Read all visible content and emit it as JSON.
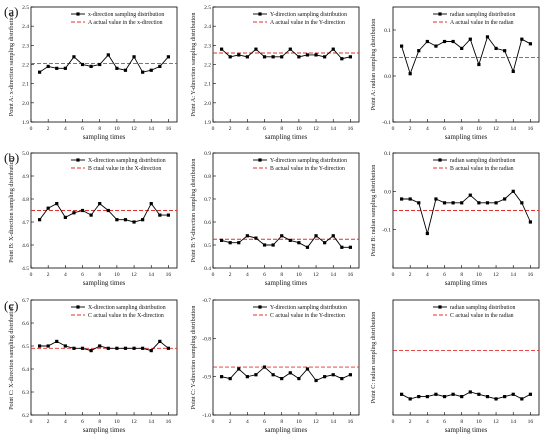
{
  "row_labels": [
    "(a)",
    "(b)",
    "(c)"
  ],
  "chart_data": [
    {
      "type": "line",
      "row": 0,
      "col": 0,
      "xlabel": "sampling times",
      "ylabel": "Point A: x-direction sampling distribution",
      "xlim": [
        0,
        17
      ],
      "xticks": [
        0,
        2,
        4,
        6,
        8,
        10,
        12,
        14,
        16
      ],
      "ylim": [
        1.9,
        2.5
      ],
      "yticks": [
        1.9,
        2.0,
        2.1,
        2.2,
        2.3,
        2.4,
        2.5
      ],
      "ytick_labels": [
        "1.9",
        "2.0",
        "2.1",
        "2.2",
        "2.3",
        "2.4",
        "2.5"
      ],
      "legend_loc": "top-right",
      "series": [
        {
          "name": "x-direction sampling distribution",
          "style": "line-square",
          "color": "#000000",
          "x": [
            1,
            2,
            3,
            4,
            5,
            6,
            7,
            8,
            9,
            10,
            11,
            12,
            13,
            14,
            15,
            16
          ],
          "values": [
            2.16,
            2.19,
            2.18,
            2.18,
            2.24,
            2.2,
            2.19,
            2.2,
            2.25,
            2.18,
            2.17,
            2.24,
            2.16,
            2.17,
            2.19,
            2.24
          ]
        }
      ],
      "reference": {
        "name": "A actual value in the x-direction",
        "value": 2.205,
        "color": "#e03030"
      }
    },
    {
      "type": "line",
      "row": 0,
      "col": 1,
      "xlabel": "sampling times",
      "ylabel": "Point A: Y-direction sampling distribution",
      "xlim": [
        0,
        17
      ],
      "xticks": [
        0,
        2,
        4,
        6,
        8,
        10,
        12,
        14,
        16
      ],
      "ylim": [
        1.9,
        2.5
      ],
      "yticks": [
        1.9,
        2.0,
        2.1,
        2.2,
        2.3,
        2.4,
        2.5
      ],
      "ytick_labels": [
        "1.9",
        "2.0",
        "2.1",
        "2.2",
        "2.3",
        "2.4",
        "2.5"
      ],
      "legend_loc": "top-right",
      "series": [
        {
          "name": "Y-direction sampling distribution",
          "style": "line-square",
          "color": "#000000",
          "x": [
            1,
            2,
            3,
            4,
            5,
            6,
            7,
            8,
            9,
            10,
            11,
            12,
            13,
            14,
            15,
            16
          ],
          "values": [
            2.28,
            2.24,
            2.25,
            2.24,
            2.28,
            2.24,
            2.24,
            2.24,
            2.28,
            2.24,
            2.25,
            2.25,
            2.24,
            2.28,
            2.23,
            2.24
          ]
        }
      ],
      "reference": {
        "name": "A actual value in the Y-direction",
        "value": 2.26,
        "color": "#e03030"
      }
    },
    {
      "type": "line",
      "row": 0,
      "col": 2,
      "xlabel": "sampling times",
      "ylabel": "Point A: radian sampling distribution",
      "xlim": [
        0,
        17
      ],
      "xticks": [
        0,
        2,
        4,
        6,
        8,
        10,
        12,
        14,
        16
      ],
      "ylim": [
        -0.1,
        0.15
      ],
      "yticks": [
        -0.1,
        0.0,
        0.1
      ],
      "ytick_labels": [
        "-0.1",
        "0.0",
        "0.1"
      ],
      "legend_loc": "top-right",
      "series": [
        {
          "name": "radian sampling distribution",
          "style": "line-square",
          "color": "#000000",
          "x": [
            1,
            2,
            3,
            4,
            5,
            6,
            7,
            8,
            9,
            10,
            11,
            12,
            13,
            14,
            15,
            16
          ],
          "values": [
            0.065,
            0.005,
            0.055,
            0.075,
            0.065,
            0.075,
            0.075,
            0.06,
            0.08,
            0.025,
            0.085,
            0.06,
            0.055,
            0.01,
            0.08,
            0.07
          ]
        }
      ],
      "reference": {
        "name": "A actual value in the radian",
        "value": 0.04,
        "color": "#e03030"
      }
    },
    {
      "type": "line",
      "row": 1,
      "col": 0,
      "xlabel": "sampling times",
      "ylabel": "Point B: X-direction sampling distribution",
      "xlim": [
        0,
        17
      ],
      "xticks": [
        0,
        2,
        4,
        6,
        8,
        10,
        12,
        14,
        16
      ],
      "ylim": [
        4.5,
        5.0
      ],
      "yticks": [
        4.5,
        4.6,
        4.7,
        4.8,
        4.9,
        5.0
      ],
      "ytick_labels": [
        "4.5",
        "4.6",
        "4.7",
        "4.8",
        "4.9",
        "5.0"
      ],
      "legend_loc": "top-right",
      "series": [
        {
          "name": "X-direction sampling distribution",
          "style": "line-square",
          "color": "#000000",
          "x": [
            1,
            2,
            3,
            4,
            5,
            6,
            7,
            8,
            9,
            10,
            11,
            12,
            13,
            14,
            15,
            16
          ],
          "values": [
            4.71,
            4.76,
            4.78,
            4.72,
            4.74,
            4.75,
            4.73,
            4.78,
            4.75,
            4.71,
            4.71,
            4.7,
            4.71,
            4.78,
            4.73,
            4.73
          ]
        }
      ],
      "reference": {
        "name": "B ctual value in the X-direction",
        "value": 4.75,
        "color": "#e03030"
      }
    },
    {
      "type": "line",
      "row": 1,
      "col": 1,
      "xlabel": "sampling times",
      "ylabel": "Point B: Y-direction sampling distribution",
      "xlim": [
        0,
        17
      ],
      "xticks": [
        0,
        2,
        4,
        6,
        8,
        10,
        12,
        14,
        16
      ],
      "ylim": [
        0.4,
        0.9
      ],
      "yticks": [
        0.4,
        0.5,
        0.6,
        0.7,
        0.8,
        0.9
      ],
      "ytick_labels": [
        "0.4",
        "0.5",
        "0.6",
        "0.7",
        "0.8",
        "0.9"
      ],
      "legend_loc": "top-right",
      "series": [
        {
          "name": "Y-direction sampling distribution",
          "style": "line-square",
          "color": "#000000",
          "x": [
            1,
            2,
            3,
            4,
            5,
            6,
            7,
            8,
            9,
            10,
            11,
            12,
            13,
            14,
            15,
            16
          ],
          "values": [
            0.52,
            0.51,
            0.51,
            0.54,
            0.53,
            0.5,
            0.5,
            0.54,
            0.52,
            0.51,
            0.49,
            0.54,
            0.51,
            0.54,
            0.49,
            0.49
          ]
        }
      ],
      "reference": {
        "name": "B actual value in the Y-direction",
        "value": 0.525,
        "color": "#e03030"
      }
    },
    {
      "type": "line",
      "row": 1,
      "col": 2,
      "xlabel": "sampling times",
      "ylabel": "Point B: radian sampling distribution",
      "xlim": [
        0,
        17
      ],
      "xticks": [
        0,
        2,
        4,
        6,
        8,
        10,
        12,
        14,
        16
      ],
      "ylim": [
        -0.2,
        0.1
      ],
      "yticks": [
        -0.1,
        0.0,
        0.1
      ],
      "ytick_labels": [
        "-0.1",
        "0.0",
        "0.1"
      ],
      "legend_loc": "top-right",
      "series": [
        {
          "name": "radian sampling distribution",
          "style": "line-square",
          "color": "#000000",
          "x": [
            1,
            2,
            3,
            4,
            5,
            6,
            7,
            8,
            9,
            10,
            11,
            12,
            13,
            14,
            15,
            16
          ],
          "values": [
            -0.02,
            -0.02,
            -0.03,
            -0.11,
            -0.02,
            -0.03,
            -0.03,
            -0.03,
            -0.01,
            -0.03,
            -0.03,
            -0.03,
            -0.02,
            0.0,
            -0.03,
            -0.08
          ]
        }
      ],
      "reference": {
        "name": "B actual value in the radian",
        "value": -0.05,
        "color": "#e03030"
      }
    },
    {
      "type": "line",
      "row": 2,
      "col": 0,
      "xlabel": "sampling times",
      "ylabel": "Point C: X-direction sampling distribution",
      "xlim": [
        0,
        17
      ],
      "xticks": [
        0,
        2,
        4,
        6,
        8,
        10,
        12,
        14,
        16
      ],
      "ylim": [
        6.2,
        6.7
      ],
      "yticks": [
        6.2,
        6.3,
        6.4,
        6.5,
        6.6,
        6.7
      ],
      "ytick_labels": [
        "6.2",
        "6.3",
        "6.4",
        "6.5",
        "6.6",
        "6.7"
      ],
      "legend_loc": "top-right",
      "series": [
        {
          "name": "X-direction sampling distribution",
          "style": "line-square",
          "color": "#000000",
          "x": [
            1,
            2,
            3,
            4,
            5,
            6,
            7,
            8,
            9,
            10,
            11,
            12,
            13,
            14,
            15,
            16
          ],
          "values": [
            6.5,
            6.5,
            6.52,
            6.5,
            6.49,
            6.49,
            6.48,
            6.5,
            6.49,
            6.49,
            6.49,
            6.49,
            6.49,
            6.48,
            6.52,
            6.49
          ]
        }
      ],
      "reference": {
        "name": "C actual value in the X-direction",
        "value": 6.49,
        "color": "#e03030"
      }
    },
    {
      "type": "line",
      "row": 2,
      "col": 1,
      "xlabel": "sampling times",
      "ylabel": "Point C: Y-direction sampling distribution",
      "xlim": [
        0,
        17
      ],
      "xticks": [
        0,
        2,
        4,
        6,
        8,
        10,
        12,
        14,
        16
      ],
      "ylim": [
        -1.0,
        -0.7
      ],
      "yticks": [
        -1.0,
        -0.9,
        -0.8,
        -0.7
      ],
      "ytick_labels": [
        "-1.0",
        "-0.9",
        "-0.8",
        "-0.7"
      ],
      "legend_loc": "top-right",
      "series": [
        {
          "name": "Y-direction sampling distribution",
          "style": "line-square",
          "color": "#000000",
          "x": [
            1,
            2,
            3,
            4,
            5,
            6,
            7,
            8,
            9,
            10,
            11,
            12,
            13,
            14,
            15,
            16
          ],
          "values": [
            -0.9,
            -0.905,
            -0.88,
            -0.9,
            -0.895,
            -0.875,
            -0.895,
            -0.905,
            -0.89,
            -0.905,
            -0.88,
            -0.91,
            -0.9,
            -0.895,
            -0.905,
            -0.895
          ]
        }
      ],
      "reference": {
        "name": "C actual value in the Y-direction",
        "value": -0.875,
        "color": "#e03030"
      }
    },
    {
      "type": "line",
      "row": 2,
      "col": 2,
      "xlabel": "sampling times",
      "ylabel": "Point C: radian sampling distribution",
      "xlim": [
        0,
        17
      ],
      "xticks": [
        0,
        2,
        4,
        6,
        8,
        10,
        12,
        14,
        16
      ],
      "ylim": [
        -0.4,
        0.1
      ],
      "yticks": [],
      "ytick_labels": [],
      "legend_loc": "top-right",
      "series": [
        {
          "name": "radian sampling distribution",
          "style": "line-square",
          "color": "#000000",
          "x": [
            1,
            2,
            3,
            4,
            5,
            6,
            7,
            8,
            9,
            10,
            11,
            12,
            13,
            14,
            15,
            16
          ],
          "values": [
            -0.31,
            -0.33,
            -0.32,
            -0.32,
            -0.31,
            -0.32,
            -0.31,
            -0.32,
            -0.3,
            -0.31,
            -0.32,
            -0.33,
            -0.32,
            -0.31,
            -0.33,
            -0.31
          ]
        }
      ],
      "reference": {
        "name": "C actual value in the radian",
        "value": -0.12,
        "color": "#e03030"
      }
    }
  ]
}
